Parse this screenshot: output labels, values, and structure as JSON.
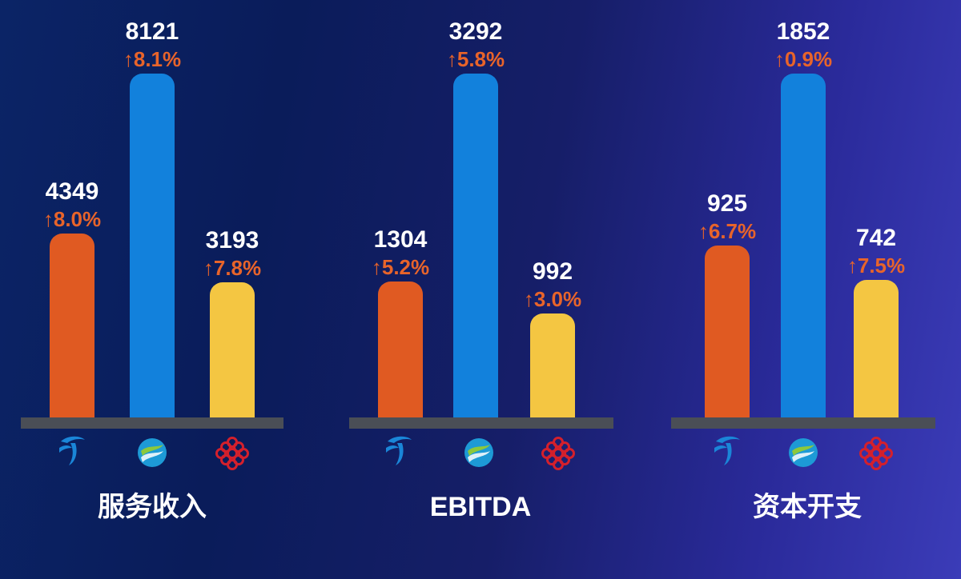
{
  "colors": {
    "telecom": "#e05a22",
    "mobile": "#1281dc",
    "unicom": "#f4c642",
    "baseline": "#4a4e56",
    "value_text": "#ffffff",
    "change_text": "#e8642a"
  },
  "chart_data": [
    {
      "type": "bar",
      "title": "服务收入",
      "categories": [
        "telecom-logo",
        "mobile-logo",
        "unicom-logo"
      ],
      "values": [
        4349,
        8121,
        3193
      ],
      "changes": [
        "↑8.0%",
        "↑8.1%",
        "↑7.8%"
      ],
      "value_labels": [
        "4349",
        "8121",
        "3193"
      ],
      "ylim": [
        0,
        8121
      ]
    },
    {
      "type": "bar",
      "title": "EBITDA",
      "categories": [
        "telecom-logo",
        "mobile-logo",
        "unicom-logo"
      ],
      "values": [
        1304,
        3292,
        992
      ],
      "changes": [
        "↑5.2%",
        "↑5.8%",
        "↑3.0%"
      ],
      "value_labels": [
        "1304",
        "3292",
        "992"
      ],
      "ylim": [
        0,
        3292
      ]
    },
    {
      "type": "bar",
      "title": "资本开支",
      "categories": [
        "telecom-logo",
        "mobile-logo",
        "unicom-logo"
      ],
      "values": [
        925,
        1852,
        742
      ],
      "changes": [
        "↑6.7%",
        "↑0.9%",
        "↑7.5%"
      ],
      "value_labels": [
        "925",
        "1852",
        "742"
      ],
      "ylim": [
        0,
        1852
      ]
    }
  ]
}
